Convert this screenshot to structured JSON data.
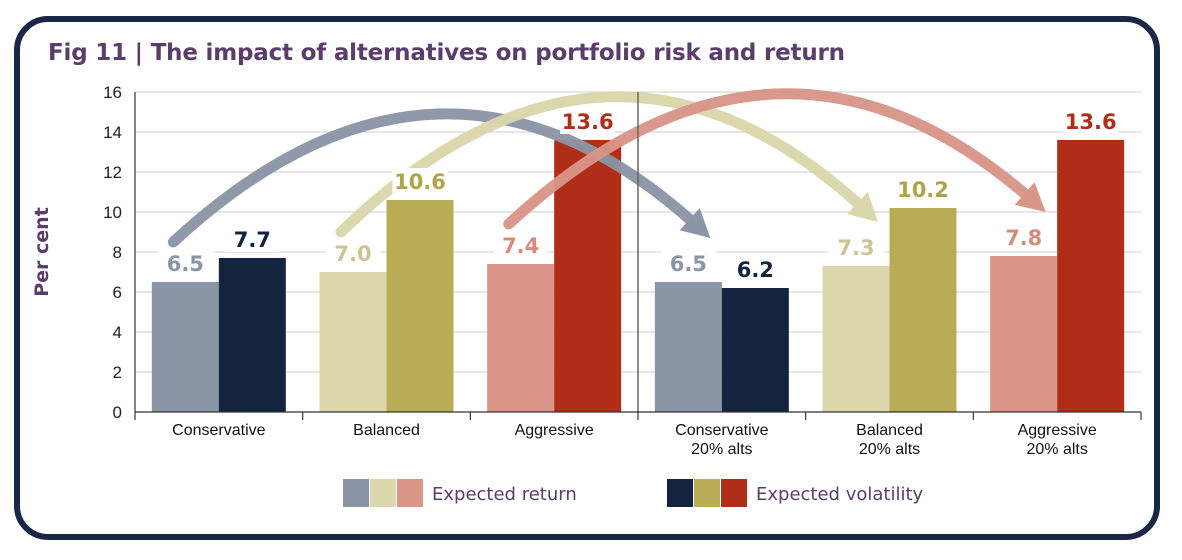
{
  "figure": {
    "title": "Fig 11 | The impact of alternatives on portfolio risk and return"
  },
  "chart_data": {
    "type": "bar",
    "title": "Fig 11 | The impact of alternatives on portfolio risk and return",
    "ylabel": "Per cent",
    "xlabel": "",
    "ylim": [
      0,
      16
    ],
    "yticks": [
      "0",
      "2",
      "4",
      "6",
      "8",
      "10",
      "12",
      "14",
      "16"
    ],
    "grid": true,
    "categories": [
      [
        "Conservative"
      ],
      [
        "Balanced"
      ],
      [
        "Aggressive"
      ],
      [
        "Conservative",
        "20% alts"
      ],
      [
        "Balanced",
        "20% alts"
      ],
      [
        "Aggressive",
        "20% alts"
      ]
    ],
    "series": [
      {
        "name": "Expected return",
        "values": [
          6.5,
          7.0,
          7.4,
          6.5,
          7.3,
          7.8
        ],
        "labels": [
          "6.5",
          "7.0",
          "7.4",
          "6.5",
          "7.3",
          "7.8"
        ],
        "colors": [
          "#8a95a5",
          "#dbd6ab",
          "#d99588",
          "#8a95a5",
          "#dbd6ab",
          "#d99588"
        ],
        "label_colors": [
          "#8a95a5",
          "#cbc593",
          "#d98a7c",
          "#8a95a5",
          "#cbc593",
          "#d98a7c"
        ]
      },
      {
        "name": "Expected volatility",
        "values": [
          7.7,
          10.6,
          13.6,
          6.2,
          10.2,
          13.6
        ],
        "labels": [
          "7.7",
          "10.6",
          "13.6",
          "6.2",
          "10.2",
          "13.6"
        ],
        "colors": [
          "#14233f",
          "#b8ad55",
          "#b02e17",
          "#14233f",
          "#b8ad55",
          "#b02e17"
        ],
        "label_colors": [
          "#14233f",
          "#b0a447",
          "#b02e17",
          "#14233f",
          "#b0a447",
          "#b02e17"
        ]
      }
    ],
    "arrows": [
      {
        "from_category": 0,
        "to_category": 3,
        "color": "#8a95a5"
      },
      {
        "from_category": 1,
        "to_category": 4,
        "color": "#dbd6ab"
      },
      {
        "from_category": 2,
        "to_category": 5,
        "color": "#d99588"
      }
    ],
    "divider_after_category": 2,
    "legend": {
      "position": "bottom",
      "items": [
        {
          "label": "Expected return",
          "colors": [
            "#8a95a5",
            "#dbd6ab",
            "#d99588"
          ]
        },
        {
          "label": "Expected volatility",
          "colors": [
            "#14233f",
            "#b8ad55",
            "#b02e17"
          ]
        }
      ]
    }
  }
}
